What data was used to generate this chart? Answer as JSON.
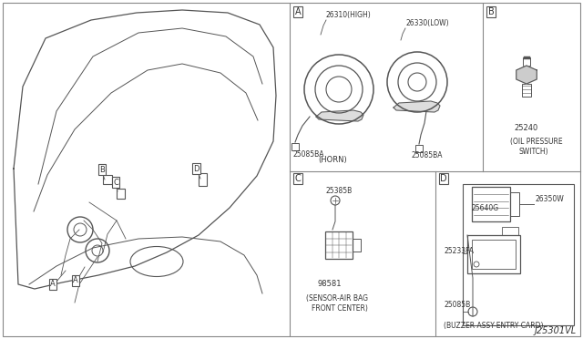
{
  "bg_color": "#ffffff",
  "border_color": "#888888",
  "line_color": "#555555",
  "text_color": "#333333",
  "fig_width": 6.4,
  "fig_height": 3.72,
  "diagram_id": "J25301VL",
  "sections": {
    "A_label": "A",
    "A_parts": [
      "26310(HIGH)",
      "25085BA",
      "26330(LOW)",
      "25085BA"
    ],
    "A_caption": "(HORN)",
    "B_label": "B",
    "B_parts": [
      "25240"
    ],
    "B_caption": "(OIL PRESSURE\nSWITCH)",
    "C_label": "C",
    "C_parts": [
      "25385B",
      "98581"
    ],
    "C_caption": "(SENSOR-AIR BAG\nFRONT CENTER)",
    "D_label": "D",
    "D_parts": [
      "25640G",
      "26350W",
      "25233FA",
      "25085B"
    ],
    "D_caption": "(BUZZER ASSY-ENTRY CARD)"
  }
}
